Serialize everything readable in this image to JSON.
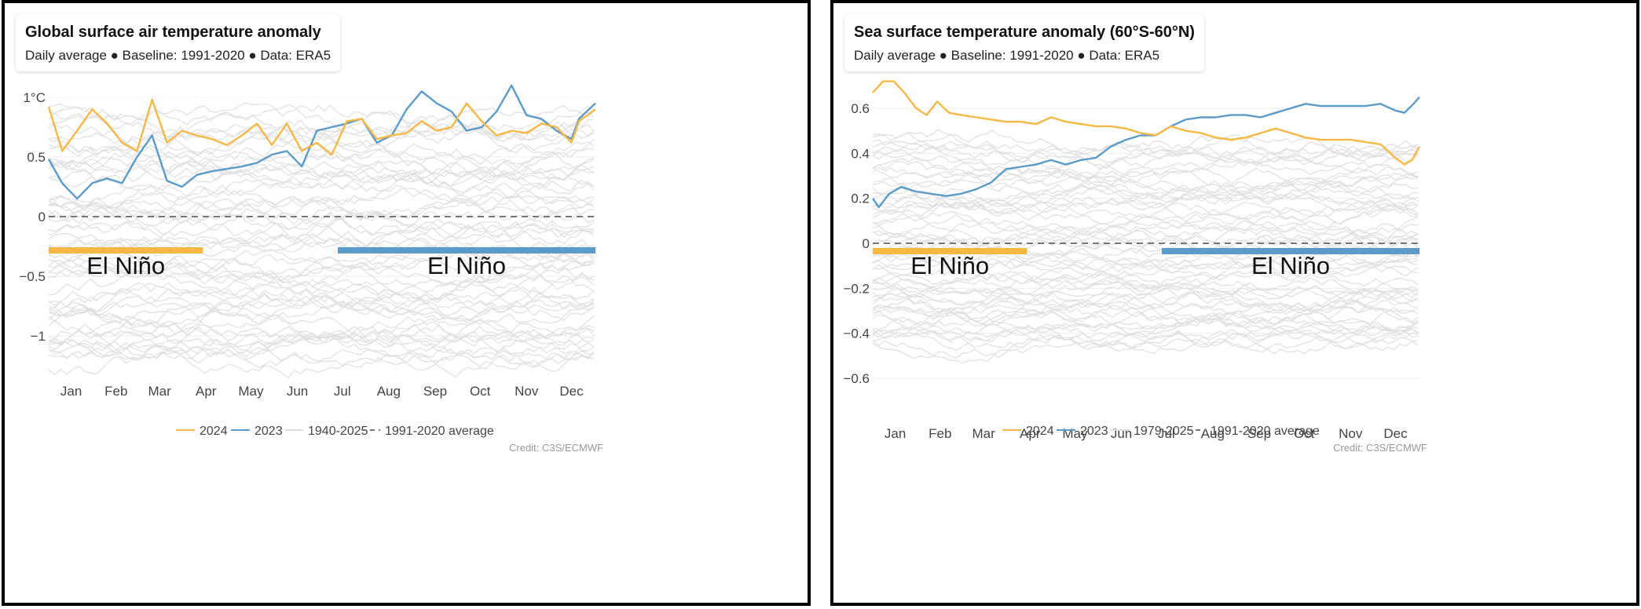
{
  "chart_data": [
    {
      "type": "line",
      "title": "Global surface air temperature anomaly",
      "subtitle": "Daily average ● Baseline: 1991-2020 ● Data: ERA5",
      "ylim": [
        -1.3,
        1.3
      ],
      "yticks": [
        {
          "value": 1,
          "label": "1°C"
        },
        {
          "value": 0.5,
          "label": "0.5"
        },
        {
          "value": 0,
          "label": "0"
        },
        {
          "value": -0.5,
          "label": "−0.5"
        },
        {
          "value": -1,
          "label": "−1"
        }
      ],
      "months": [
        "Jan",
        "Feb",
        "Mar",
        "Apr",
        "May",
        "Jun",
        "Jul",
        "Aug",
        "Sep",
        "Oct",
        "Nov",
        "Dec"
      ],
      "series": [
        {
          "name": "2024",
          "color": "#f7b843",
          "points": [
            [
              1,
              0.92
            ],
            [
              10,
              0.55
            ],
            [
              20,
              0.72
            ],
            [
              30,
              0.9
            ],
            [
              40,
              0.78
            ],
            [
              50,
              0.62
            ],
            [
              60,
              0.55
            ],
            [
              70,
              0.98
            ],
            [
              80,
              0.62
            ],
            [
              90,
              0.72
            ],
            [
              100,
              0.68
            ],
            [
              110,
              0.65
            ],
            [
              120,
              0.6
            ],
            [
              130,
              0.68
            ],
            [
              140,
              0.78
            ],
            [
              150,
              0.6
            ],
            [
              160,
              0.78
            ],
            [
              170,
              0.55
            ],
            [
              180,
              0.62
            ],
            [
              190,
              0.52
            ],
            [
              200,
              0.8
            ],
            [
              210,
              0.82
            ],
            [
              220,
              0.65
            ],
            [
              230,
              0.68
            ],
            [
              240,
              0.7
            ],
            [
              250,
              0.8
            ],
            [
              260,
              0.72
            ],
            [
              270,
              0.75
            ],
            [
              280,
              0.95
            ],
            [
              290,
              0.8
            ],
            [
              300,
              0.68
            ],
            [
              310,
              0.72
            ],
            [
              320,
              0.7
            ],
            [
              330,
              0.78
            ],
            [
              340,
              0.75
            ],
            [
              350,
              0.62
            ],
            [
              355,
              0.8
            ],
            [
              366,
              0.9
            ]
          ]
        },
        {
          "name": "2023",
          "color": "#5b9bc9",
          "points": [
            [
              1,
              0.48
            ],
            [
              10,
              0.28
            ],
            [
              20,
              0.15
            ],
            [
              30,
              0.28
            ],
            [
              40,
              0.32
            ],
            [
              50,
              0.28
            ],
            [
              60,
              0.5
            ],
            [
              70,
              0.68
            ],
            [
              80,
              0.3
            ],
            [
              90,
              0.25
            ],
            [
              100,
              0.35
            ],
            [
              110,
              0.38
            ],
            [
              120,
              0.4
            ],
            [
              130,
              0.42
            ],
            [
              140,
              0.45
            ],
            [
              150,
              0.52
            ],
            [
              160,
              0.55
            ],
            [
              170,
              0.42
            ],
            [
              180,
              0.72
            ],
            [
              190,
              0.75
            ],
            [
              200,
              0.78
            ],
            [
              210,
              0.82
            ],
            [
              220,
              0.62
            ],
            [
              230,
              0.68
            ],
            [
              240,
              0.9
            ],
            [
              250,
              1.05
            ],
            [
              260,
              0.95
            ],
            [
              270,
              0.88
            ],
            [
              280,
              0.72
            ],
            [
              290,
              0.75
            ],
            [
              300,
              0.88
            ],
            [
              310,
              1.1
            ],
            [
              320,
              0.85
            ],
            [
              330,
              0.82
            ],
            [
              340,
              0.72
            ],
            [
              350,
              0.65
            ],
            [
              355,
              0.82
            ],
            [
              366,
              0.95
            ]
          ]
        },
        {
          "name": "1940-2025",
          "color": "#dddddd"
        },
        {
          "name": "1991-2020 average",
          "color": "#777777"
        }
      ],
      "annotations": [
        {
          "label": "El Niño",
          "color": "#f7b843",
          "from_day": 1,
          "to_day": 104
        },
        {
          "label": "El Niño",
          "color": "#5b9bc9",
          "from_day": 194,
          "to_day": 366
        }
      ],
      "background_band": {
        "low": [
          -1.2,
          -0.3
        ],
        "high": [
          0.0,
          0.85
        ]
      },
      "legend_position": "bottom-center",
      "credit": "Credit: C3S/ECMWF"
    },
    {
      "type": "line",
      "title": "Sea surface temperature anomaly (60°S-60°N)",
      "subtitle": "Daily average ● Baseline: 1991-2020 ● Data: ERA5",
      "ylim": [
        -0.65,
        0.75
      ],
      "yticks": [
        {
          "value": 0.6,
          "label": "0.6"
        },
        {
          "value": 0.4,
          "label": "0.4"
        },
        {
          "value": 0.2,
          "label": "0.2"
        },
        {
          "value": 0,
          "label": "0"
        },
        {
          "value": -0.2,
          "label": "−0.2"
        },
        {
          "value": -0.4,
          "label": "−0.4"
        },
        {
          "value": -0.6,
          "label": "−0.6"
        }
      ],
      "months": [
        "Jan",
        "Feb",
        "Mar",
        "Apr",
        "May",
        "Jun",
        "Jul",
        "Aug",
        "Sep",
        "Oct",
        "Nov",
        "Dec"
      ],
      "series": [
        {
          "name": "2024",
          "color": "#f7b843",
          "points": [
            [
              1,
              0.67
            ],
            [
              8,
              0.72
            ],
            [
              15,
              0.72
            ],
            [
              22,
              0.67
            ],
            [
              30,
              0.6
            ],
            [
              37,
              0.57
            ],
            [
              44,
              0.63
            ],
            [
              52,
              0.58
            ],
            [
              60,
              0.57
            ],
            [
              70,
              0.56
            ],
            [
              80,
              0.55
            ],
            [
              90,
              0.54
            ],
            [
              100,
              0.54
            ],
            [
              110,
              0.53
            ],
            [
              120,
              0.56
            ],
            [
              130,
              0.54
            ],
            [
              140,
              0.53
            ],
            [
              150,
              0.52
            ],
            [
              160,
              0.52
            ],
            [
              170,
              0.51
            ],
            [
              180,
              0.49
            ],
            [
              190,
              0.48
            ],
            [
              200,
              0.52
            ],
            [
              210,
              0.5
            ],
            [
              220,
              0.49
            ],
            [
              230,
              0.47
            ],
            [
              240,
              0.46
            ],
            [
              250,
              0.47
            ],
            [
              260,
              0.49
            ],
            [
              270,
              0.51
            ],
            [
              280,
              0.49
            ],
            [
              290,
              0.47
            ],
            [
              300,
              0.46
            ],
            [
              310,
              0.46
            ],
            [
              320,
              0.46
            ],
            [
              330,
              0.45
            ],
            [
              340,
              0.44
            ],
            [
              350,
              0.38
            ],
            [
              356,
              0.35
            ],
            [
              361,
              0.37
            ],
            [
              366,
              0.43
            ]
          ]
        },
        {
          "name": "2023",
          "color": "#5b9bc9",
          "points": [
            [
              1,
              0.2
            ],
            [
              5,
              0.16
            ],
            [
              12,
              0.22
            ],
            [
              20,
              0.25
            ],
            [
              30,
              0.23
            ],
            [
              40,
              0.22
            ],
            [
              50,
              0.21
            ],
            [
              60,
              0.22
            ],
            [
              70,
              0.24
            ],
            [
              80,
              0.27
            ],
            [
              90,
              0.33
            ],
            [
              100,
              0.34
            ],
            [
              110,
              0.35
            ],
            [
              120,
              0.37
            ],
            [
              130,
              0.35
            ],
            [
              140,
              0.37
            ],
            [
              150,
              0.38
            ],
            [
              160,
              0.43
            ],
            [
              170,
              0.46
            ],
            [
              180,
              0.48
            ],
            [
              190,
              0.48
            ],
            [
              200,
              0.52
            ],
            [
              210,
              0.55
            ],
            [
              220,
              0.56
            ],
            [
              230,
              0.56
            ],
            [
              240,
              0.57
            ],
            [
              250,
              0.57
            ],
            [
              260,
              0.56
            ],
            [
              270,
              0.58
            ],
            [
              280,
              0.6
            ],
            [
              290,
              0.62
            ],
            [
              300,
              0.61
            ],
            [
              310,
              0.61
            ],
            [
              320,
              0.61
            ],
            [
              330,
              0.61
            ],
            [
              340,
              0.62
            ],
            [
              350,
              0.59
            ],
            [
              356,
              0.58
            ],
            [
              362,
              0.62
            ],
            [
              366,
              0.65
            ]
          ]
        },
        {
          "name": "1979-2025",
          "color": "#dddddd"
        },
        {
          "name": "1991-2020 average",
          "color": "#777777"
        }
      ],
      "annotations": [
        {
          "label": "El Niño",
          "color": "#f7b843",
          "from_day": 1,
          "to_day": 104
        },
        {
          "label": "El Niño",
          "color": "#5b9bc9",
          "from_day": 194,
          "to_day": 366
        }
      ],
      "background_band": {
        "low": [
          -0.45,
          -0.2
        ],
        "high": [
          0.0,
          0.45
        ]
      },
      "legend_position": "bottom-center",
      "credit": "Credit: C3S/ECMWF"
    }
  ]
}
